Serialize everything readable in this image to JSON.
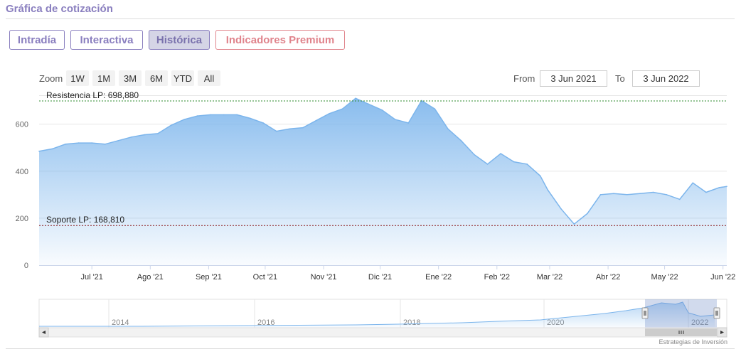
{
  "header": {
    "title": "Gráfica de cotización"
  },
  "tabs": [
    {
      "label": "Intradía",
      "active": false
    },
    {
      "label": "Interactiva",
      "active": false
    },
    {
      "label": "Histórica",
      "active": true
    },
    {
      "label": "Indicadores Premium",
      "active": false
    }
  ],
  "range_selector": {
    "zoom_label": "Zoom",
    "buttons": [
      "1W",
      "1M",
      "3M",
      "6M",
      "YTD",
      "All"
    ],
    "from_label": "From",
    "from_value": "3 Jun 2021",
    "to_label": "To",
    "to_value": "3 Jun 2022"
  },
  "colors": {
    "accent": "#8a7fbf",
    "premium": "#e0848c",
    "series": "#7cb5ec",
    "resistance": "#2e8b2e",
    "support": "#8b1a1a"
  },
  "chart_data": {
    "type": "area",
    "title": "",
    "xlabel": "",
    "ylabel": "",
    "ylim": [
      0,
      720
    ],
    "grid": true,
    "yticks": [
      "0",
      "200",
      "400",
      "600"
    ],
    "x_ticks": [
      "Jul '21",
      "Ago '21",
      "Sep '21",
      "Oct '21",
      "Nov '21",
      "Dic '21",
      "Ene '22",
      "Feb '22",
      "Mar '22",
      "Abr '22",
      "May '22",
      "Jun '22"
    ],
    "x_range": [
      "2021-06-03",
      "2022-06-03"
    ],
    "series": [
      {
        "x": [
          "2021-06-03",
          "2021-06-10",
          "2021-06-17",
          "2021-06-24",
          "2021-07-01",
          "2021-07-08",
          "2021-07-15",
          "2021-07-22",
          "2021-07-29",
          "2021-08-05",
          "2021-08-12",
          "2021-08-19",
          "2021-08-26",
          "2021-09-02",
          "2021-09-09",
          "2021-09-16",
          "2021-09-23",
          "2021-09-30",
          "2021-10-07",
          "2021-10-14",
          "2021-10-21",
          "2021-10-28",
          "2021-11-04",
          "2021-11-11",
          "2021-11-18",
          "2021-11-25",
          "2021-12-02",
          "2021-12-09",
          "2021-12-16",
          "2021-12-23",
          "2021-12-30",
          "2022-01-06",
          "2022-01-13",
          "2022-01-20",
          "2022-01-27",
          "2022-02-03",
          "2022-02-10",
          "2022-02-17",
          "2022-02-24",
          "2022-02-28",
          "2022-03-07",
          "2022-03-14",
          "2022-03-21",
          "2022-03-28",
          "2022-04-04",
          "2022-04-11",
          "2022-04-18",
          "2022-04-25",
          "2022-05-02",
          "2022-05-09",
          "2022-05-16",
          "2022-05-23",
          "2022-05-30",
          "2022-06-03"
        ],
        "values": [
          485,
          495,
          515,
          520,
          520,
          515,
          530,
          545,
          555,
          560,
          595,
          620,
          635,
          640,
          640,
          640,
          625,
          605,
          570,
          580,
          585,
          615,
          645,
          665,
          710,
          685,
          660,
          620,
          605,
          700,
          665,
          580,
          530,
          470,
          430,
          475,
          440,
          430,
          380,
          320,
          240,
          175,
          220,
          300,
          305,
          300,
          305,
          310,
          300,
          280,
          350,
          310,
          330,
          335
        ]
      }
    ],
    "annotations": [
      {
        "label": "Resistencia LP: 698,880",
        "value": 698.88
      },
      {
        "label": "Soporte LP: 168,810",
        "value": 168.81
      }
    ],
    "navigator": {
      "x_ticks": [
        "2014",
        "2016",
        "2018",
        "2020",
        "2022"
      ],
      "credit": "Estrategias de Inversión"
    }
  }
}
